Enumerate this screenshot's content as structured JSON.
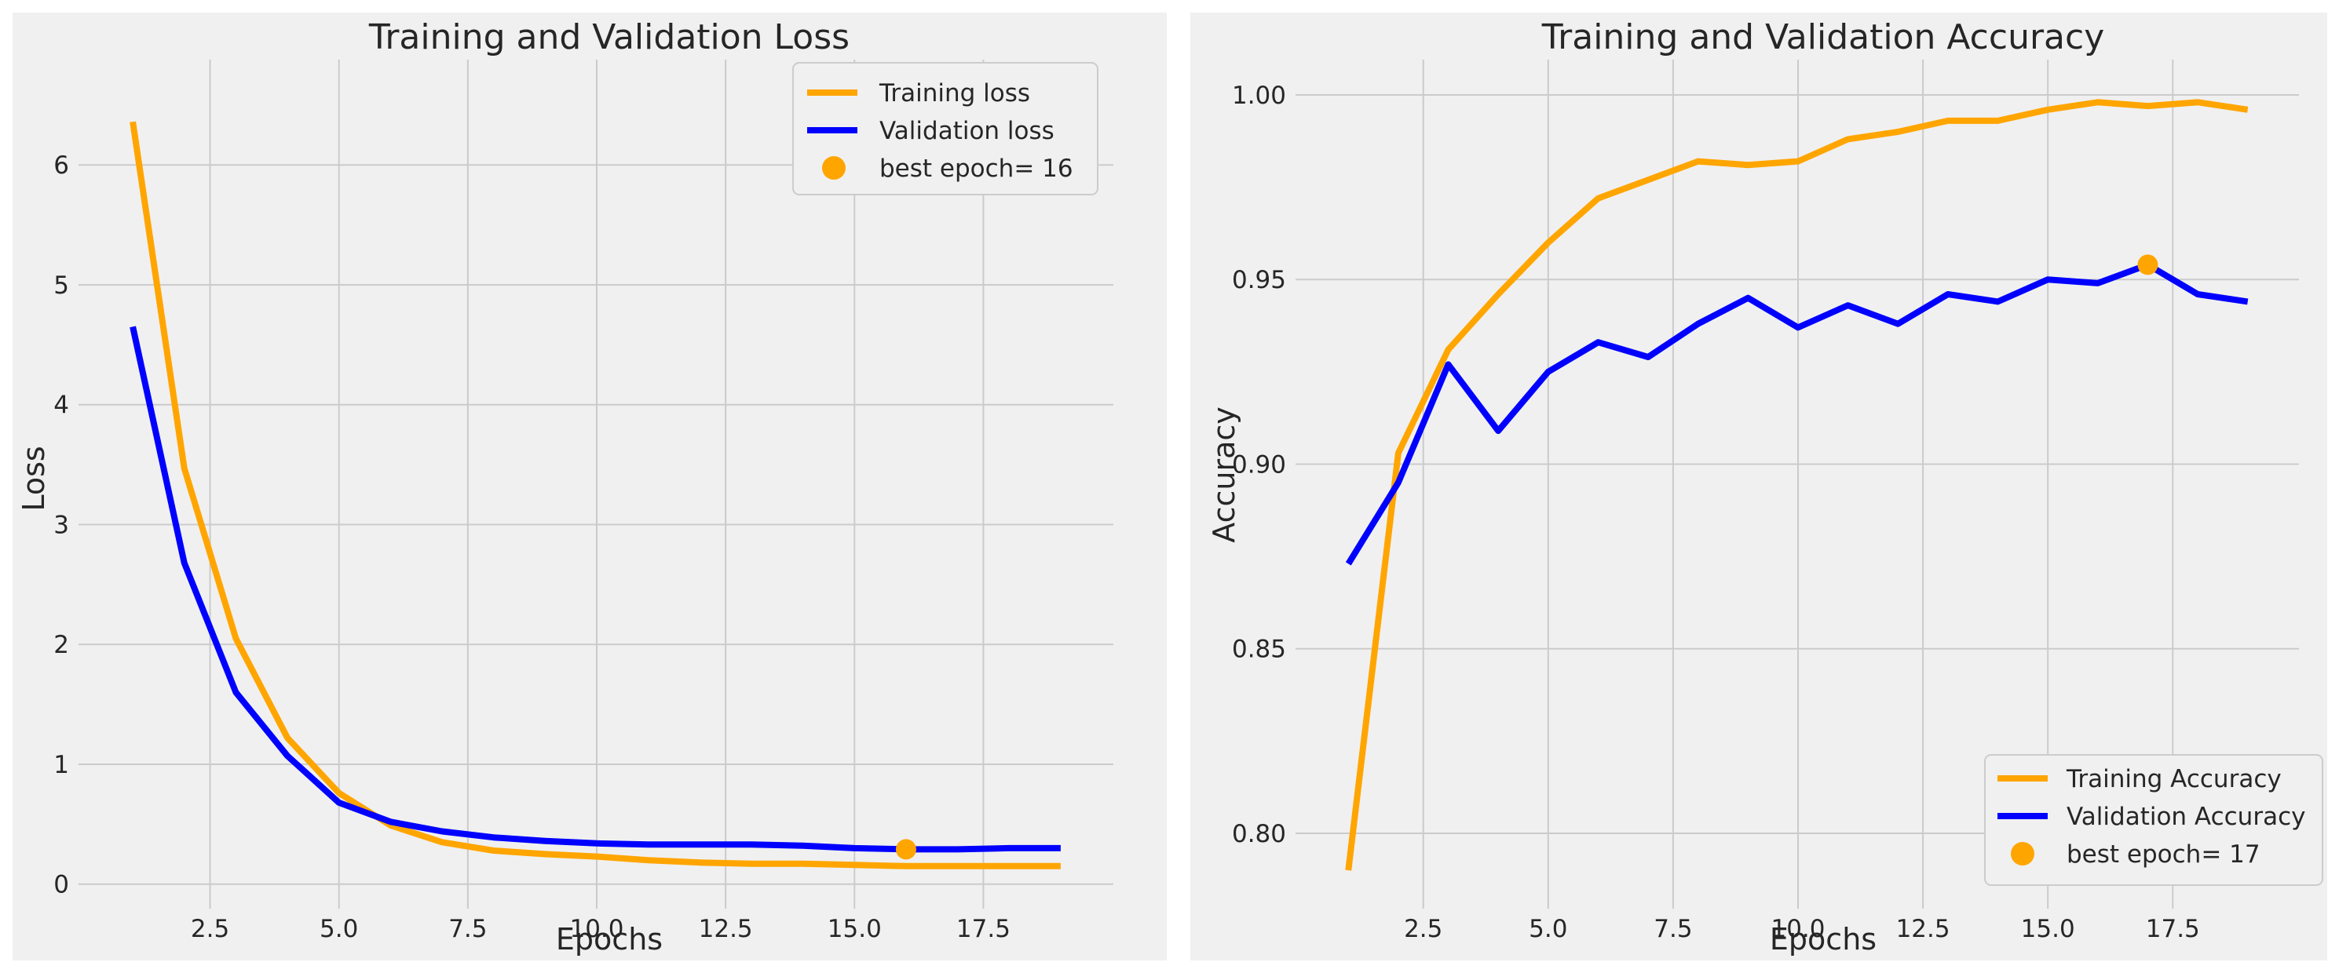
{
  "chart_data": [
    {
      "type": "line",
      "title": "Training and Validation Loss",
      "xlabel": "Epochs",
      "ylabel": "Loss",
      "xlim": [
        0.1,
        19.9
      ],
      "ylim": [
        -0.1,
        6.8
      ],
      "xticks": [
        2.5,
        5.0,
        7.5,
        10.0,
        12.5,
        15.0,
        17.5
      ],
      "xtick_labels": [
        "2.5",
        "5.0",
        "7.5",
        "10.0",
        "12.5",
        "15.0",
        "17.5"
      ],
      "yticks": [
        0,
        1,
        2,
        3,
        4,
        5,
        6
      ],
      "ytick_labels": [
        "0",
        "1",
        "2",
        "3",
        "4",
        "5",
        "6"
      ],
      "grid": true,
      "legend_position": "top-right",
      "series": [
        {
          "name": "Training loss",
          "color": "#ffa500",
          "x": [
            1,
            2,
            3,
            4,
            5,
            6,
            7,
            8,
            9,
            10,
            11,
            12,
            13,
            14,
            15,
            16,
            17,
            18,
            19
          ],
          "values": [
            6.36,
            3.47,
            2.05,
            1.22,
            0.76,
            0.49,
            0.35,
            0.28,
            0.25,
            0.23,
            0.2,
            0.18,
            0.17,
            0.17,
            0.16,
            0.15,
            0.15,
            0.15,
            0.15
          ]
        },
        {
          "name": "Validation loss",
          "color": "#0000ff",
          "x": [
            1,
            2,
            3,
            4,
            5,
            6,
            7,
            8,
            9,
            10,
            11,
            12,
            13,
            14,
            15,
            16,
            17,
            18,
            19
          ],
          "values": [
            4.65,
            2.68,
            1.6,
            1.07,
            0.68,
            0.52,
            0.44,
            0.39,
            0.36,
            0.34,
            0.33,
            0.33,
            0.33,
            0.32,
            0.3,
            0.29,
            0.29,
            0.3,
            0.3
          ]
        }
      ],
      "best_point": {
        "label": "best epoch= 16",
        "x": 16,
        "y": 0.29,
        "color": "#ffa500"
      }
    },
    {
      "type": "line",
      "title": "Training and Validation Accuracy",
      "xlabel": "Epochs",
      "ylabel": "Accuracy",
      "xlim": [
        0.1,
        19.9
      ],
      "ylim": [
        0.783,
        1.007
      ],
      "xticks": [
        2.5,
        5.0,
        7.5,
        10.0,
        12.5,
        15.0,
        17.5
      ],
      "xtick_labels": [
        "2.5",
        "5.0",
        "7.5",
        "10.0",
        "12.5",
        "15.0",
        "17.5"
      ],
      "yticks": [
        0.8,
        0.85,
        0.9,
        0.95,
        1.0
      ],
      "ytick_labels": [
        "0.80",
        "0.85",
        "0.90",
        "0.95",
        "1.00"
      ],
      "grid": true,
      "legend_position": "bottom-right",
      "series": [
        {
          "name": "Training Accuracy",
          "color": "#ffa500",
          "x": [
            1,
            2,
            3,
            4,
            5,
            6,
            7,
            8,
            9,
            10,
            11,
            12,
            13,
            14,
            15,
            16,
            17,
            18,
            19
          ],
          "values": [
            0.79,
            0.903,
            0.931,
            0.946,
            0.96,
            0.972,
            0.977,
            0.982,
            0.981,
            0.982,
            0.988,
            0.99,
            0.993,
            0.993,
            0.996,
            0.998,
            0.997,
            0.998,
            0.996
          ]
        },
        {
          "name": "Validation Accuracy",
          "color": "#0000ff",
          "x": [
            1,
            2,
            3,
            4,
            5,
            6,
            7,
            8,
            9,
            10,
            11,
            12,
            13,
            14,
            15,
            16,
            17,
            18,
            19
          ],
          "values": [
            0.873,
            0.895,
            0.927,
            0.909,
            0.925,
            0.933,
            0.929,
            0.938,
            0.945,
            0.937,
            0.943,
            0.938,
            0.946,
            0.944,
            0.95,
            0.949,
            0.954,
            0.946,
            0.944
          ]
        }
      ],
      "best_point": {
        "label": "best epoch= 17",
        "x": 17,
        "y": 0.954,
        "color": "#ffa500"
      }
    }
  ]
}
